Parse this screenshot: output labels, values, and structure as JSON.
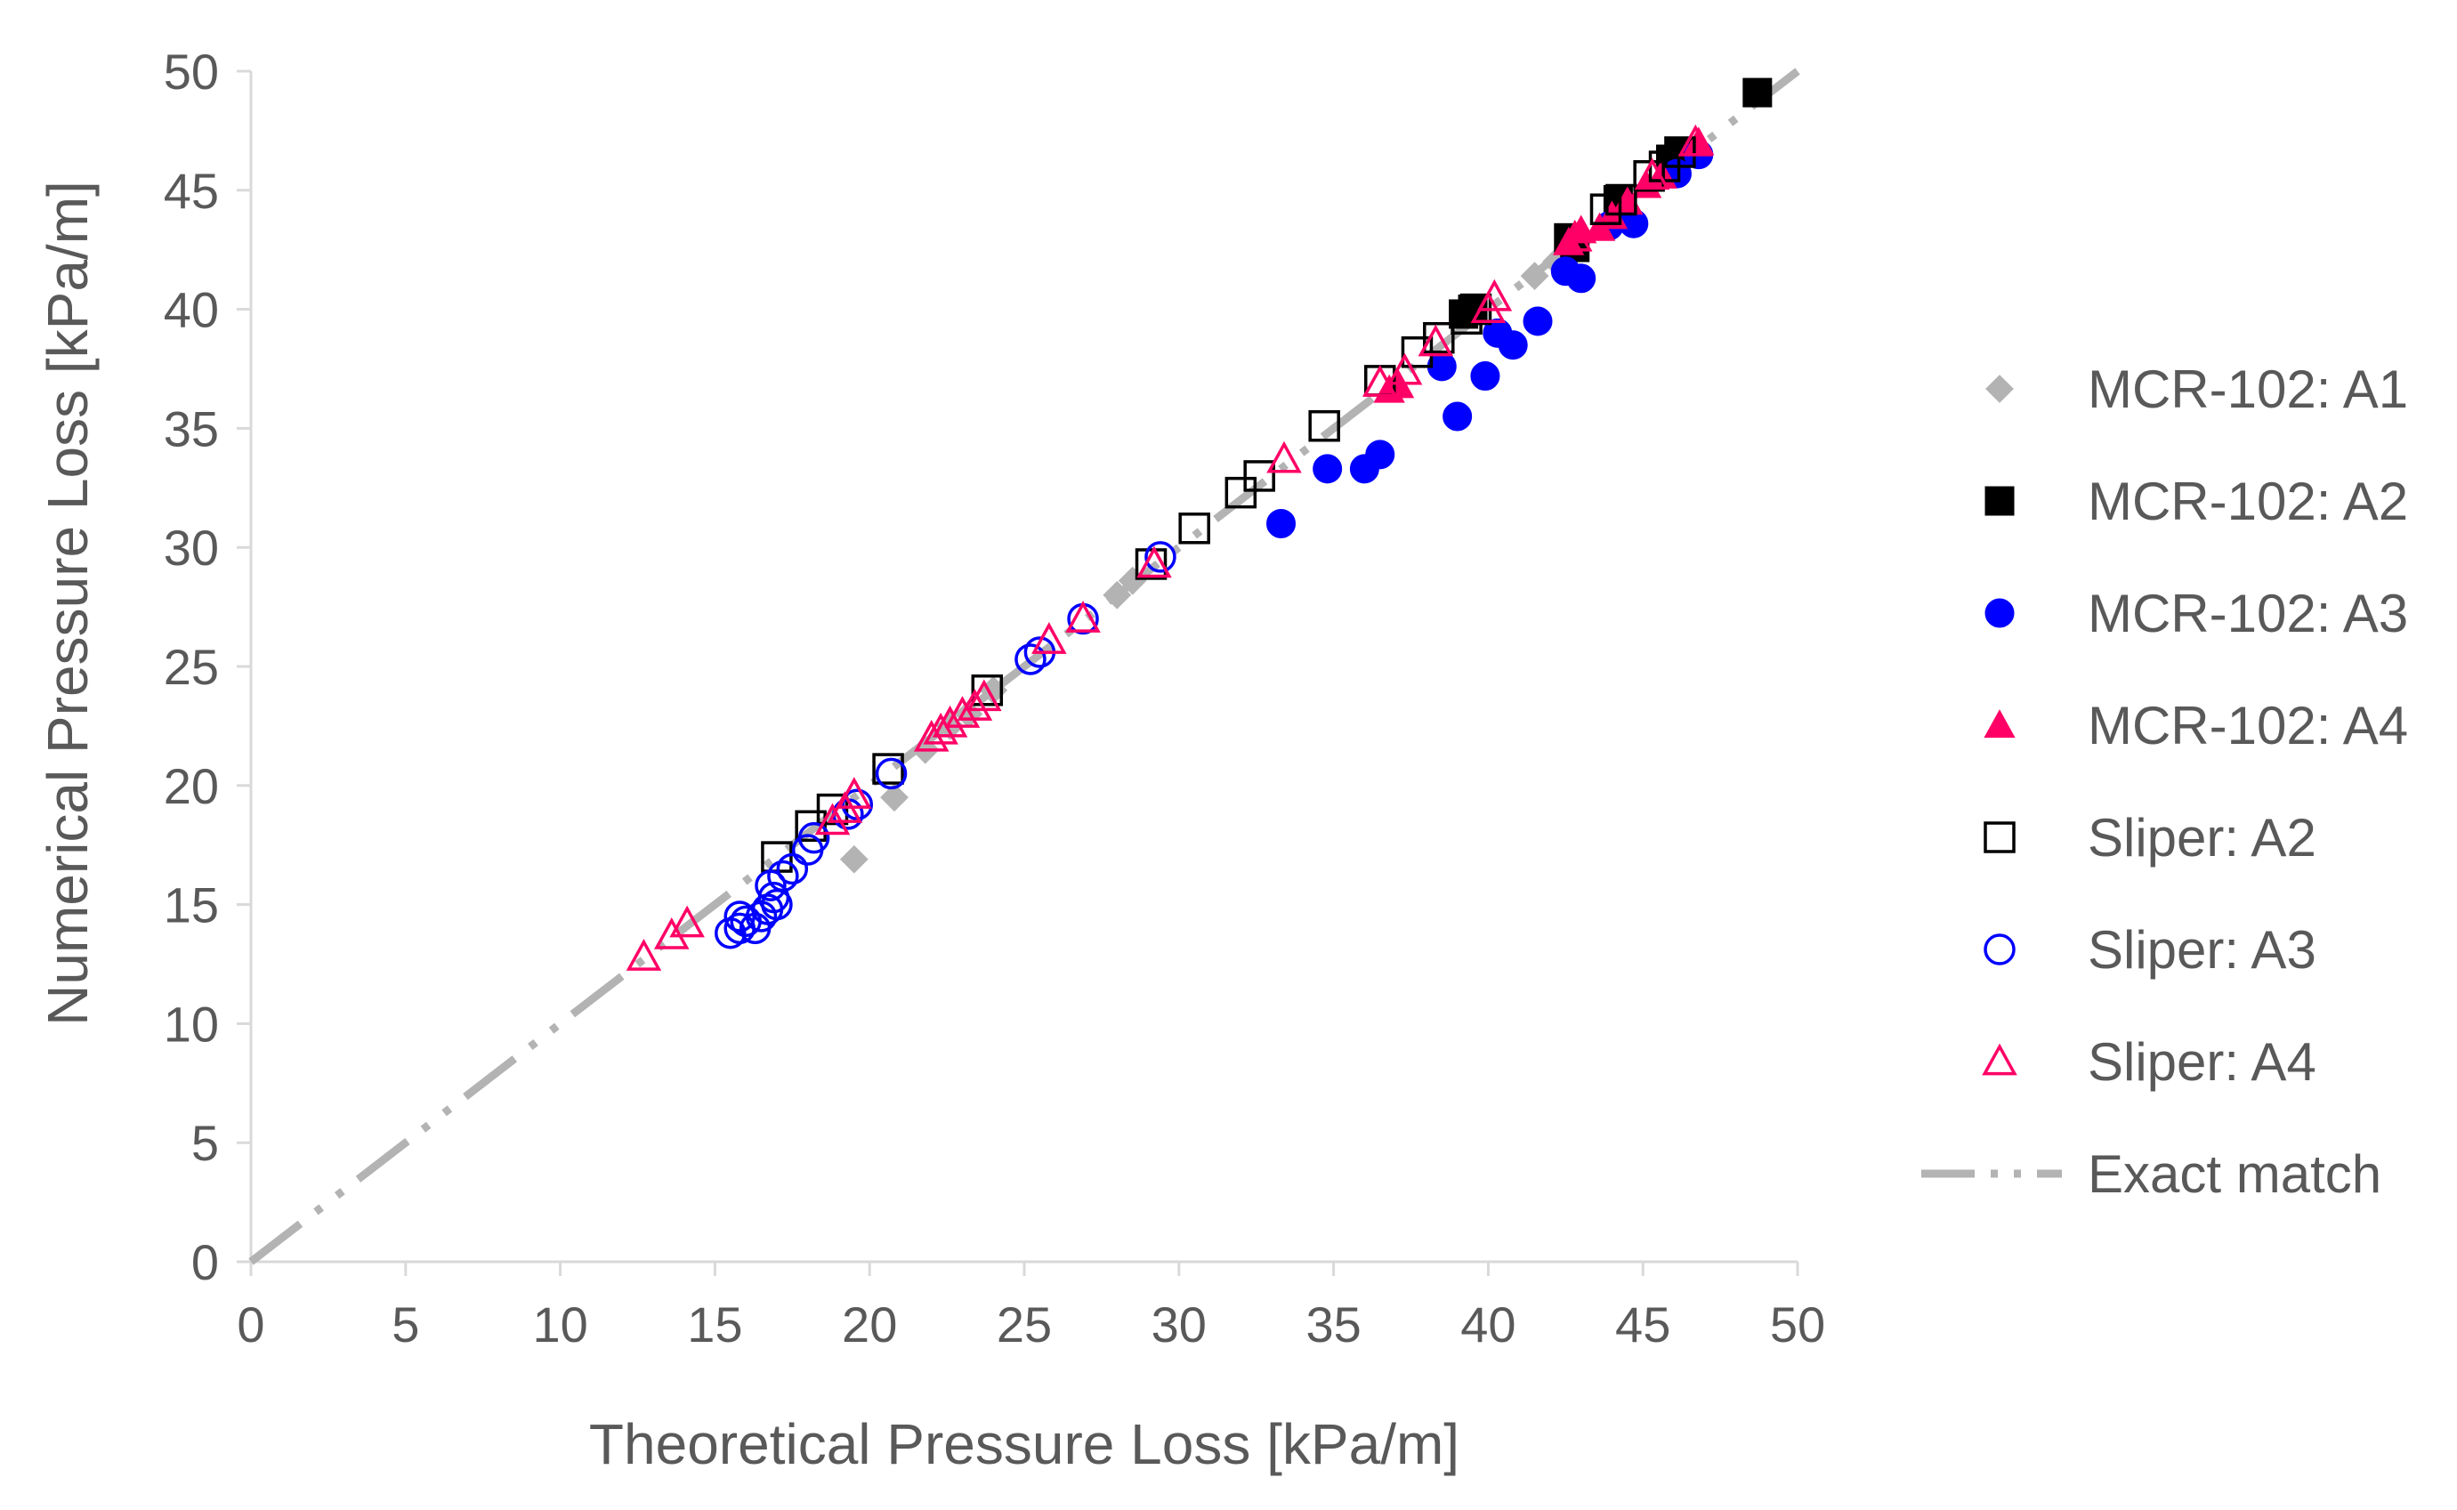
{
  "chart_data": {
    "type": "scatter",
    "title": "",
    "xlabel": "Theoretical Pressure Loss [kPa/m]",
    "ylabel": "Numerical Pressure Loss [kPa/m]",
    "xlim": [
      0,
      50
    ],
    "ylim": [
      0,
      50
    ],
    "xticks": [
      0,
      5,
      10,
      15,
      20,
      25,
      30,
      35,
      40,
      45,
      50
    ],
    "yticks": [
      0,
      5,
      10,
      15,
      20,
      25,
      30,
      35,
      40,
      45,
      50
    ],
    "xtick_labels": [
      "0",
      "5",
      "10",
      "15",
      "20",
      "25",
      "30",
      "35",
      "40",
      "45",
      "50"
    ],
    "ytick_labels": [
      "0",
      "5",
      "10",
      "15",
      "20",
      "25",
      "30",
      "35",
      "40",
      "45",
      "50"
    ],
    "grid": false,
    "legend_position": "right",
    "series": [
      {
        "name": "MCR-102: A1",
        "marker": "diamond",
        "filled": true,
        "color": "#b3b3b3",
        "x": [
          19.5,
          20.8,
          21.8,
          22.6,
          23.2,
          24.0,
          28.0,
          28.5,
          41.5,
          42.2
        ],
        "y": [
          16.9,
          19.5,
          21.5,
          22.5,
          23.0,
          24.0,
          28.0,
          28.6,
          41.4,
          42.0
        ]
      },
      {
        "name": "MCR-102: A2",
        "marker": "square",
        "filled": true,
        "color": "#000000",
        "x": [
          48.7,
          44.2,
          42.6,
          42.8,
          45.9,
          46.2,
          39.5,
          39.2
        ],
        "y": [
          49.1,
          44.6,
          43.0,
          42.6,
          46.3,
          46.6,
          40.0,
          39.8
        ]
      },
      {
        "name": "MCR-102: A3",
        "marker": "circle",
        "filled": true,
        "color": "#0000ff",
        "x": [
          33.3,
          34.8,
          36.0,
          36.5,
          38.5,
          39.0,
          39.9,
          40.3,
          40.8,
          41.6,
          42.5,
          43.0,
          43.9,
          44.7,
          46.1,
          46.8
        ],
        "y": [
          31.0,
          33.3,
          33.3,
          33.9,
          37.6,
          35.5,
          37.2,
          39.0,
          38.5,
          39.5,
          41.6,
          41.3,
          43.5,
          43.6,
          45.7,
          46.5
        ]
      },
      {
        "name": "MCR-102: A4",
        "marker": "triangle",
        "filled": true,
        "color": "#ff0066",
        "x": [
          36.8,
          37.1,
          42.6,
          43.0,
          43.6,
          44.0,
          44.5,
          45.1,
          45.6,
          46.8
        ],
        "y": [
          36.6,
          36.8,
          42.8,
          43.3,
          43.4,
          43.9,
          44.5,
          45.2,
          45.6,
          47.0
        ]
      },
      {
        "name": "Sliper: A2",
        "marker": "square",
        "filled": false,
        "color": "#000000",
        "x": [
          17.0,
          18.1,
          18.8,
          20.6,
          23.8,
          29.1,
          30.5,
          32.0,
          32.6,
          34.7,
          36.5,
          37.7,
          38.4,
          39.3,
          39.6,
          43.8,
          44.3,
          45.2,
          45.7,
          46.2
        ],
        "y": [
          17.0,
          18.3,
          19.0,
          20.7,
          24.0,
          29.3,
          30.8,
          32.3,
          33.0,
          35.1,
          37.0,
          38.2,
          38.8,
          39.6,
          40.0,
          44.2,
          44.6,
          45.6,
          46.0,
          46.6
        ]
      },
      {
        "name": "Sliper: A3",
        "marker": "circle",
        "filled": false,
        "color": "#0000ff",
        "x": [
          15.5,
          15.8,
          16.0,
          16.3,
          16.5,
          16.7,
          16.9,
          17.0,
          16.8,
          17.2,
          17.5,
          18.0,
          18.2,
          19.3,
          19.6,
          20.7,
          25.2,
          25.5,
          26.9,
          29.4,
          15.8
        ],
        "y": [
          13.8,
          14.0,
          14.3,
          14.0,
          14.5,
          14.8,
          15.3,
          15.0,
          15.8,
          16.2,
          16.5,
          17.3,
          17.8,
          18.8,
          19.2,
          20.5,
          25.3,
          25.6,
          27.0,
          29.6,
          14.5
        ]
      },
      {
        "name": "Sliper: A4",
        "marker": "triangle",
        "filled": false,
        "color": "#ff0066",
        "x": [
          12.7,
          13.6,
          14.1,
          18.8,
          19.2,
          19.5,
          22.0,
          22.3,
          22.6,
          23.0,
          23.4,
          23.7,
          25.8,
          26.9,
          29.2,
          33.4,
          36.5,
          37.3,
          38.3,
          40.0,
          40.2,
          42.8,
          45.3,
          46.7
        ],
        "y": [
          12.8,
          13.7,
          14.2,
          18.5,
          19.0,
          19.6,
          22.0,
          22.3,
          22.6,
          23.0,
          23.3,
          23.7,
          26.1,
          27.0,
          29.3,
          33.7,
          36.9,
          37.4,
          38.6,
          40.0,
          40.5,
          43.0,
          45.6,
          47.0
        ]
      },
      {
        "name": "Exact match",
        "marker": "line",
        "line_style": "dash-dot-dot",
        "color": "#b3b3b3",
        "x": [
          0,
          50
        ],
        "y": [
          0,
          50
        ]
      }
    ]
  }
}
